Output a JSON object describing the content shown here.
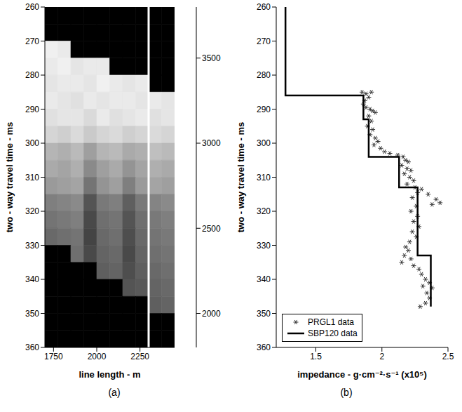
{
  "chart_data": [
    {
      "type": "heatmap",
      "panel_label": "(a)",
      "xlabel": "line length - m",
      "ylabel": "two - way  travel time - ms",
      "xlim": [
        1700,
        2450
      ],
      "xticks": [
        1750,
        2000,
        2250
      ],
      "ylim": [
        260,
        360
      ],
      "yticks": [
        260,
        270,
        280,
        290,
        300,
        310,
        320,
        330,
        340,
        350,
        360
      ],
      "x": [
        1737.5,
        1812.5,
        1887.5,
        1962.5,
        2037.5,
        2112.5,
        2187.5,
        2262.5,
        2337.5,
        2412.5
      ],
      "y": [
        262.5,
        267.5,
        272.5,
        277.5,
        282.5,
        287.5,
        292.5,
        297.5,
        302.5,
        307.5,
        312.5,
        317.5,
        322.5,
        327.5,
        332.5,
        337.5,
        342.5,
        347.5,
        352.5,
        357.5
      ],
      "cells": [
        [
          null,
          null,
          null,
          null,
          null,
          null,
          null,
          null,
          null,
          null
        ],
        [
          null,
          null,
          null,
          null,
          null,
          null,
          null,
          null,
          null,
          null
        ],
        [
          1850,
          1900,
          null,
          null,
          null,
          null,
          null,
          null,
          null,
          null
        ],
        [
          1900,
          1850,
          1950,
          1900,
          1900,
          null,
          null,
          null,
          null,
          null
        ],
        [
          1950,
          1900,
          1900,
          1950,
          1850,
          1900,
          1950,
          1900,
          null,
          null
        ],
        [
          1900,
          1950,
          2000,
          1900,
          1950,
          1900,
          1900,
          1950,
          1900,
          1950
        ],
        [
          2000,
          1950,
          1950,
          2050,
          1900,
          2000,
          1950,
          1900,
          2000,
          1950
        ],
        [
          2100,
          2150,
          2050,
          2200,
          2100,
          2050,
          2150,
          2100,
          2050,
          2100
        ],
        [
          2400,
          2450,
          2350,
          2600,
          2400,
          2350,
          2500,
          2450,
          2300,
          2350
        ],
        [
          2500,
          2550,
          2450,
          2800,
          2600,
          2500,
          2700,
          2550,
          2450,
          2500
        ],
        [
          2650,
          2600,
          2550,
          3000,
          2700,
          2600,
          2900,
          2650,
          2550,
          2600
        ],
        [
          2900,
          2850,
          2800,
          3300,
          2950,
          2900,
          3200,
          2950,
          2850,
          2800
        ],
        [
          3000,
          2950,
          2900,
          3400,
          3050,
          3000,
          3300,
          3050,
          2950,
          2900
        ],
        [
          3100,
          3050,
          3000,
          3450,
          3100,
          3050,
          3350,
          3100,
          3000,
          2950
        ],
        [
          null,
          null,
          3050,
          3400,
          3150,
          3100,
          3400,
          3150,
          3050,
          3000
        ],
        [
          null,
          null,
          null,
          null,
          3200,
          3150,
          3350,
          3200,
          3100,
          3050
        ],
        [
          null,
          null,
          null,
          null,
          null,
          null,
          3300,
          3250,
          3150,
          3100
        ],
        [
          null,
          null,
          null,
          null,
          null,
          null,
          null,
          null,
          3200,
          3150
        ],
        [
          null,
          null,
          null,
          null,
          null,
          null,
          null,
          null,
          null,
          null
        ],
        [
          null,
          null,
          null,
          null,
          null,
          null,
          null,
          null,
          null,
          null
        ]
      ],
      "colorbar": {
        "range": [
          1800,
          3800
        ],
        "ticks": [
          2000,
          2500,
          3000,
          3500
        ]
      },
      "vlines": [
        2300
      ]
    },
    {
      "type": "scatter",
      "panel_label": "(b)",
      "xlabel": "impedance - g·cm⁻²·s⁻¹ (x10⁵)",
      "ylabel": "two - way  travel time - ms",
      "xlim": [
        1.2,
        2.5
      ],
      "xticks": [
        1.5,
        2,
        2.5
      ],
      "ylim": [
        260,
        360
      ],
      "yticks": [
        260,
        270,
        280,
        290,
        300,
        310,
        320,
        330,
        340,
        350,
        360
      ],
      "legend": "lower left",
      "series": [
        {
          "name": "PRGL1 data",
          "type": "scatter",
          "marker": "asterisk",
          "color": "#333333",
          "x": [
            1.85,
            1.88,
            1.92,
            1.9,
            1.87,
            1.86,
            1.88,
            1.91,
            1.93,
            1.95,
            1.9,
            1.92,
            1.89,
            1.93,
            1.91,
            1.95,
            1.97,
            1.94,
            1.99,
            2.02,
            2.06,
            2.12,
            2.16,
            2.18,
            2.2,
            2.15,
            2.19,
            2.22,
            2.17,
            2.21,
            2.24,
            2.19,
            2.25,
            2.3,
            2.27,
            2.35,
            2.41,
            2.38,
            2.44,
            2.23,
            2.26,
            2.22,
            2.27,
            2.24,
            2.28,
            2.23,
            2.26,
            2.21,
            2.18,
            2.2,
            2.17,
            2.22,
            2.15,
            2.24,
            2.28,
            2.3,
            2.33,
            2.36,
            2.31,
            2.38,
            2.34,
            2.36,
            2.33,
            2.29
          ],
          "y": [
            285,
            285.5,
            285,
            286.5,
            287.5,
            288.5,
            289.5,
            290,
            290.5,
            291,
            292,
            293.5,
            295,
            296,
            297.5,
            298.5,
            299.5,
            300.5,
            301.5,
            302.5,
            303,
            303.5,
            304,
            305,
            305.5,
            306.5,
            307.5,
            308,
            309,
            310,
            311,
            312,
            313,
            313.5,
            314.5,
            315,
            316.5,
            318,
            317.5,
            316,
            318.5,
            320,
            321.5,
            323,
            324.5,
            326,
            327.5,
            329,
            330.5,
            331.5,
            333,
            334,
            335,
            336,
            337,
            338.5,
            340,
            341,
            342,
            342.5,
            344,
            345.5,
            347,
            348
          ]
        },
        {
          "name": "SBP120 data",
          "type": "line",
          "line_style": "solid",
          "color": "#000000",
          "x": [
            1.27,
            1.27,
            1.86,
            1.86,
            1.9,
            1.9,
            2.13,
            2.13,
            2.27,
            2.27,
            2.37,
            2.37
          ],
          "y": [
            260,
            286,
            286,
            293,
            293,
            304,
            304,
            313,
            313,
            333,
            333,
            348
          ]
        }
      ]
    }
  ]
}
